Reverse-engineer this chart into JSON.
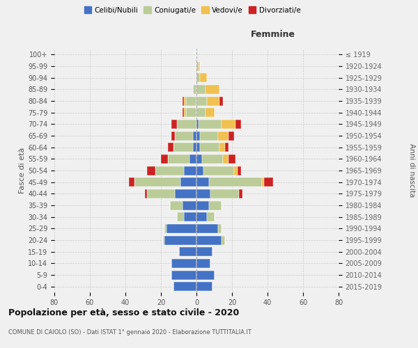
{
  "age_groups": [
    "0-4",
    "5-9",
    "10-14",
    "15-19",
    "20-24",
    "25-29",
    "30-34",
    "35-39",
    "40-44",
    "45-49",
    "50-54",
    "55-59",
    "60-64",
    "65-69",
    "70-74",
    "75-79",
    "80-84",
    "85-89",
    "90-94",
    "95-99",
    "100+"
  ],
  "birth_years": [
    "2015-2019",
    "2010-2014",
    "2005-2009",
    "2000-2004",
    "1995-1999",
    "1990-1994",
    "1985-1989",
    "1980-1984",
    "1975-1979",
    "1970-1974",
    "1965-1969",
    "1960-1964",
    "1955-1959",
    "1950-1954",
    "1945-1949",
    "1940-1944",
    "1935-1939",
    "1930-1934",
    "1925-1929",
    "1920-1924",
    "≤ 1919"
  ],
  "male": {
    "celibi": [
      13,
      14,
      14,
      10,
      18,
      17,
      7,
      8,
      12,
      9,
      7,
      4,
      2,
      2,
      0,
      0,
      0,
      0,
      0,
      0,
      0
    ],
    "coniugati": [
      0,
      0,
      0,
      0,
      1,
      1,
      4,
      7,
      16,
      26,
      16,
      12,
      11,
      10,
      11,
      6,
      6,
      2,
      0,
      0,
      0
    ],
    "vedovi": [
      0,
      0,
      0,
      0,
      0,
      0,
      0,
      0,
      0,
      0,
      0,
      0,
      0,
      0,
      0,
      1,
      1,
      0,
      0,
      0,
      0
    ],
    "divorziati": [
      0,
      0,
      0,
      0,
      0,
      0,
      0,
      0,
      1,
      3,
      5,
      4,
      3,
      2,
      3,
      1,
      1,
      0,
      0,
      0,
      0
    ]
  },
  "female": {
    "nubili": [
      9,
      10,
      8,
      9,
      14,
      12,
      6,
      7,
      8,
      7,
      4,
      3,
      2,
      2,
      1,
      0,
      0,
      0,
      0,
      0,
      0
    ],
    "coniugate": [
      0,
      0,
      0,
      0,
      2,
      2,
      4,
      7,
      16,
      30,
      17,
      12,
      11,
      10,
      13,
      5,
      6,
      5,
      2,
      1,
      0
    ],
    "vedove": [
      0,
      0,
      0,
      0,
      0,
      0,
      0,
      0,
      0,
      1,
      2,
      3,
      3,
      6,
      8,
      5,
      7,
      8,
      4,
      1,
      0
    ],
    "divorziate": [
      0,
      0,
      0,
      0,
      0,
      0,
      0,
      0,
      2,
      5,
      2,
      4,
      2,
      3,
      3,
      0,
      2,
      0,
      0,
      0,
      0
    ]
  },
  "colors": {
    "celibi": "#4472C4",
    "coniugati": "#BBCC99",
    "vedovi": "#F0C050",
    "divorziati": "#CC2222"
  },
  "xlim": 80,
  "title": "Popolazione per età, sesso e stato civile - 2020",
  "subtitle": "COMUNE DI CAIOLO (SO) - Dati ISTAT 1° gennaio 2020 - Elaborazione TUTTITALIA.IT",
  "ylabel_left": "Fasce di età",
  "ylabel_right": "Anni di nascita",
  "xlabel_right": "Femmine",
  "bg_color": "#f0f0f0",
  "grid_color": "#cccccc"
}
